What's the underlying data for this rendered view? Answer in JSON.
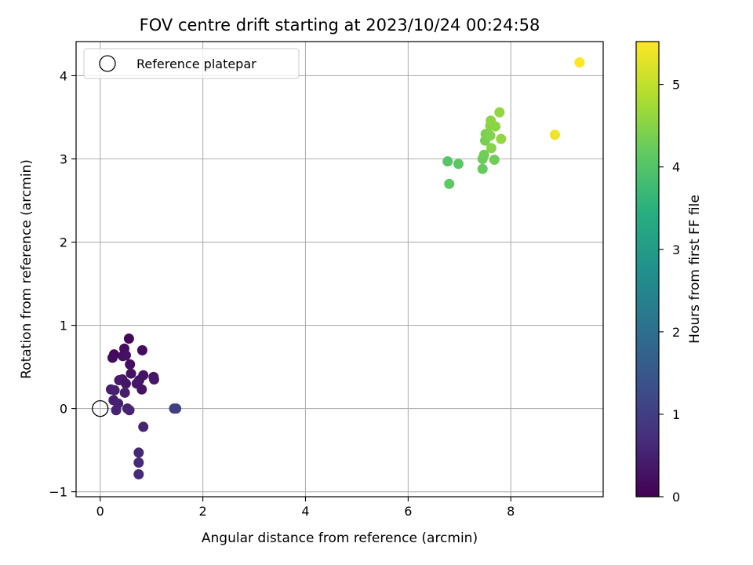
{
  "chart_data": {
    "type": "scatter",
    "title": "FOV centre drift starting at 2023/10/24 00:24:58",
    "xlabel": "Angular distance from reference (arcmin)",
    "ylabel": "Rotation from reference (arcmin)",
    "xlim": [
      -0.47,
      9.8
    ],
    "ylim": [
      -1.06,
      4.41
    ],
    "xticks": [
      0,
      2,
      4,
      6,
      8
    ],
    "xtick_labels": [
      "0",
      "2",
      "4",
      "6",
      "8"
    ],
    "yticks": [
      -1,
      0,
      1,
      2,
      3,
      4
    ],
    "ytick_labels": [
      "−1",
      "0",
      "1",
      "2",
      "3",
      "4"
    ],
    "grid": true,
    "legend": {
      "position": "upper left",
      "entries": [
        {
          "label": "Reference platepar",
          "marker": "open-circle",
          "x": 0,
          "y": 0
        }
      ]
    },
    "colorbar": {
      "label": "Hours from first FF file",
      "colormap": "viridis",
      "range": [
        0,
        5.52
      ],
      "ticks": [
        0,
        1,
        2,
        3,
        4,
        5
      ],
      "tick_labels": [
        "0",
        "1",
        "2",
        "3",
        "4",
        "5"
      ]
    },
    "series": [
      {
        "color_by": "hours_from_first_ff_file",
        "points": [
          {
            "x": 0.56,
            "y": 0.84,
            "c": 0.1
          },
          {
            "x": 0.82,
            "y": 0.7,
            "c": 0.15
          },
          {
            "x": 0.47,
            "y": 0.72,
            "c": 0.2
          },
          {
            "x": 0.27,
            "y": 0.65,
            "c": 0.1
          },
          {
            "x": 0.24,
            "y": 0.61,
            "c": 0.15
          },
          {
            "x": 0.44,
            "y": 0.63,
            "c": 0.2
          },
          {
            "x": 0.5,
            "y": 0.64,
            "c": 0.25
          },
          {
            "x": 0.58,
            "y": 0.53,
            "c": 0.2
          },
          {
            "x": 0.6,
            "y": 0.42,
            "c": 0.25
          },
          {
            "x": 0.84,
            "y": 0.4,
            "c": 0.3
          },
          {
            "x": 1.04,
            "y": 0.38,
            "c": 0.3
          },
          {
            "x": 1.05,
            "y": 0.35,
            "c": 0.35
          },
          {
            "x": 0.76,
            "y": 0.34,
            "c": 0.3
          },
          {
            "x": 0.71,
            "y": 0.3,
            "c": 0.35
          },
          {
            "x": 0.81,
            "y": 0.23,
            "c": 0.3
          },
          {
            "x": 0.43,
            "y": 0.35,
            "c": 0.35
          },
          {
            "x": 0.37,
            "y": 0.34,
            "c": 0.4
          },
          {
            "x": 0.5,
            "y": 0.3,
            "c": 0.35
          },
          {
            "x": 0.48,
            "y": 0.19,
            "c": 0.45
          },
          {
            "x": 0.21,
            "y": 0.23,
            "c": 0.45
          },
          {
            "x": 0.28,
            "y": 0.22,
            "c": 0.5
          },
          {
            "x": 0.26,
            "y": 0.1,
            "c": 0.45
          },
          {
            "x": 0.35,
            "y": 0.06,
            "c": 0.5
          },
          {
            "x": 0.31,
            "y": -0.02,
            "c": 0.55
          },
          {
            "x": 0.53,
            "y": 0.0,
            "c": 0.5
          },
          {
            "x": 0.57,
            "y": -0.02,
            "c": 0.55
          },
          {
            "x": 0.84,
            "y": -0.22,
            "c": 0.55
          },
          {
            "x": 0.75,
            "y": -0.53,
            "c": 0.6
          },
          {
            "x": 0.75,
            "y": -0.65,
            "c": 0.65
          },
          {
            "x": 0.75,
            "y": -0.79,
            "c": 0.65
          },
          {
            "x": 1.44,
            "y": 0.0,
            "c": 1.0
          },
          {
            "x": 1.48,
            "y": 0.0,
            "c": 1.02
          },
          {
            "x": 6.77,
            "y": 2.97,
            "c": 4.05
          },
          {
            "x": 6.98,
            "y": 2.94,
            "c": 4.1
          },
          {
            "x": 6.8,
            "y": 2.7,
            "c": 4.15
          },
          {
            "x": 7.45,
            "y": 2.88,
            "c": 4.2
          },
          {
            "x": 7.45,
            "y": 3.0,
            "c": 4.25
          },
          {
            "x": 7.48,
            "y": 3.05,
            "c": 4.3
          },
          {
            "x": 7.68,
            "y": 2.99,
            "c": 4.3
          },
          {
            "x": 7.5,
            "y": 3.22,
            "c": 4.35
          },
          {
            "x": 7.51,
            "y": 3.3,
            "c": 4.4
          },
          {
            "x": 7.6,
            "y": 3.28,
            "c": 4.45
          },
          {
            "x": 7.62,
            "y": 3.13,
            "c": 4.5
          },
          {
            "x": 7.6,
            "y": 3.4,
            "c": 4.5
          },
          {
            "x": 7.7,
            "y": 3.39,
            "c": 4.55
          },
          {
            "x": 7.61,
            "y": 3.46,
            "c": 4.55
          },
          {
            "x": 7.78,
            "y": 3.56,
            "c": 4.6
          },
          {
            "x": 7.81,
            "y": 3.24,
            "c": 4.6
          },
          {
            "x": 8.86,
            "y": 3.29,
            "c": 5.4
          },
          {
            "x": 9.34,
            "y": 4.16,
            "c": 5.5
          }
        ]
      }
    ]
  }
}
